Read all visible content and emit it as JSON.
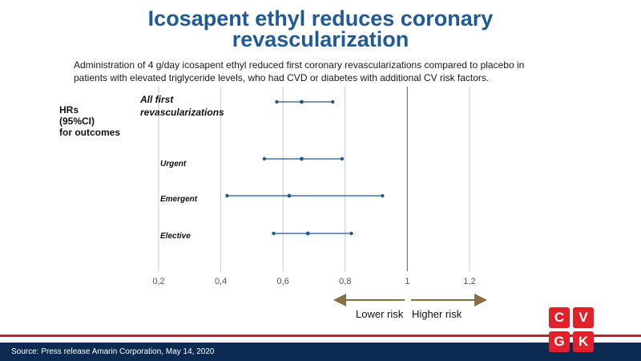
{
  "title": {
    "line1": "Icosapent ethyl reduces coronary",
    "line2": "revascularization"
  },
  "subtitle": {
    "line1": "Administration of 4 g/day icosapent ethyl reduced first coronary revascularizations compared to placebo in",
    "line2": "patients with elevated triglyceride levels, who had CVD or diabetes with additional CV risk factors."
  },
  "ylabel": {
    "line1": "HRs",
    "line2": "(95%CI)",
    "line3": "for outcomes"
  },
  "chart_data": {
    "type": "forest",
    "xlim": [
      0.2,
      1.2
    ],
    "x_ticks": [
      0.2,
      0.4,
      0.6,
      0.8,
      1.0,
      1.2
    ],
    "x_tick_labels": [
      "0,2",
      "0,4",
      "0,6",
      "0,8",
      "1",
      "1,2"
    ],
    "reference_line": 1.0,
    "grid": true,
    "rows": [
      {
        "label_lines": [
          "All first",
          "revascularizations"
        ],
        "hr": 0.66,
        "low": 0.58,
        "high": 0.76
      },
      {
        "label_lines": [
          "Urgent"
        ],
        "hr": 0.66,
        "low": 0.54,
        "high": 0.79
      },
      {
        "label_lines": [
          "Emergent"
        ],
        "hr": 0.62,
        "low": 0.42,
        "high": 0.92
      },
      {
        "label_lines": [
          "Elective"
        ],
        "hr": 0.68,
        "low": 0.57,
        "high": 0.82
      }
    ],
    "point_color": "#1f5a96",
    "line_color": "#1f5a96"
  },
  "risk": {
    "lower": "Lower risk",
    "higher": "Higher risk",
    "arrow_color": "#8a6d45"
  },
  "logo": {
    "letters": [
      "C",
      "V",
      "G",
      "K"
    ]
  },
  "footer": {
    "source": "Source: Press release Amarin Corporation, May 14, 2020"
  }
}
